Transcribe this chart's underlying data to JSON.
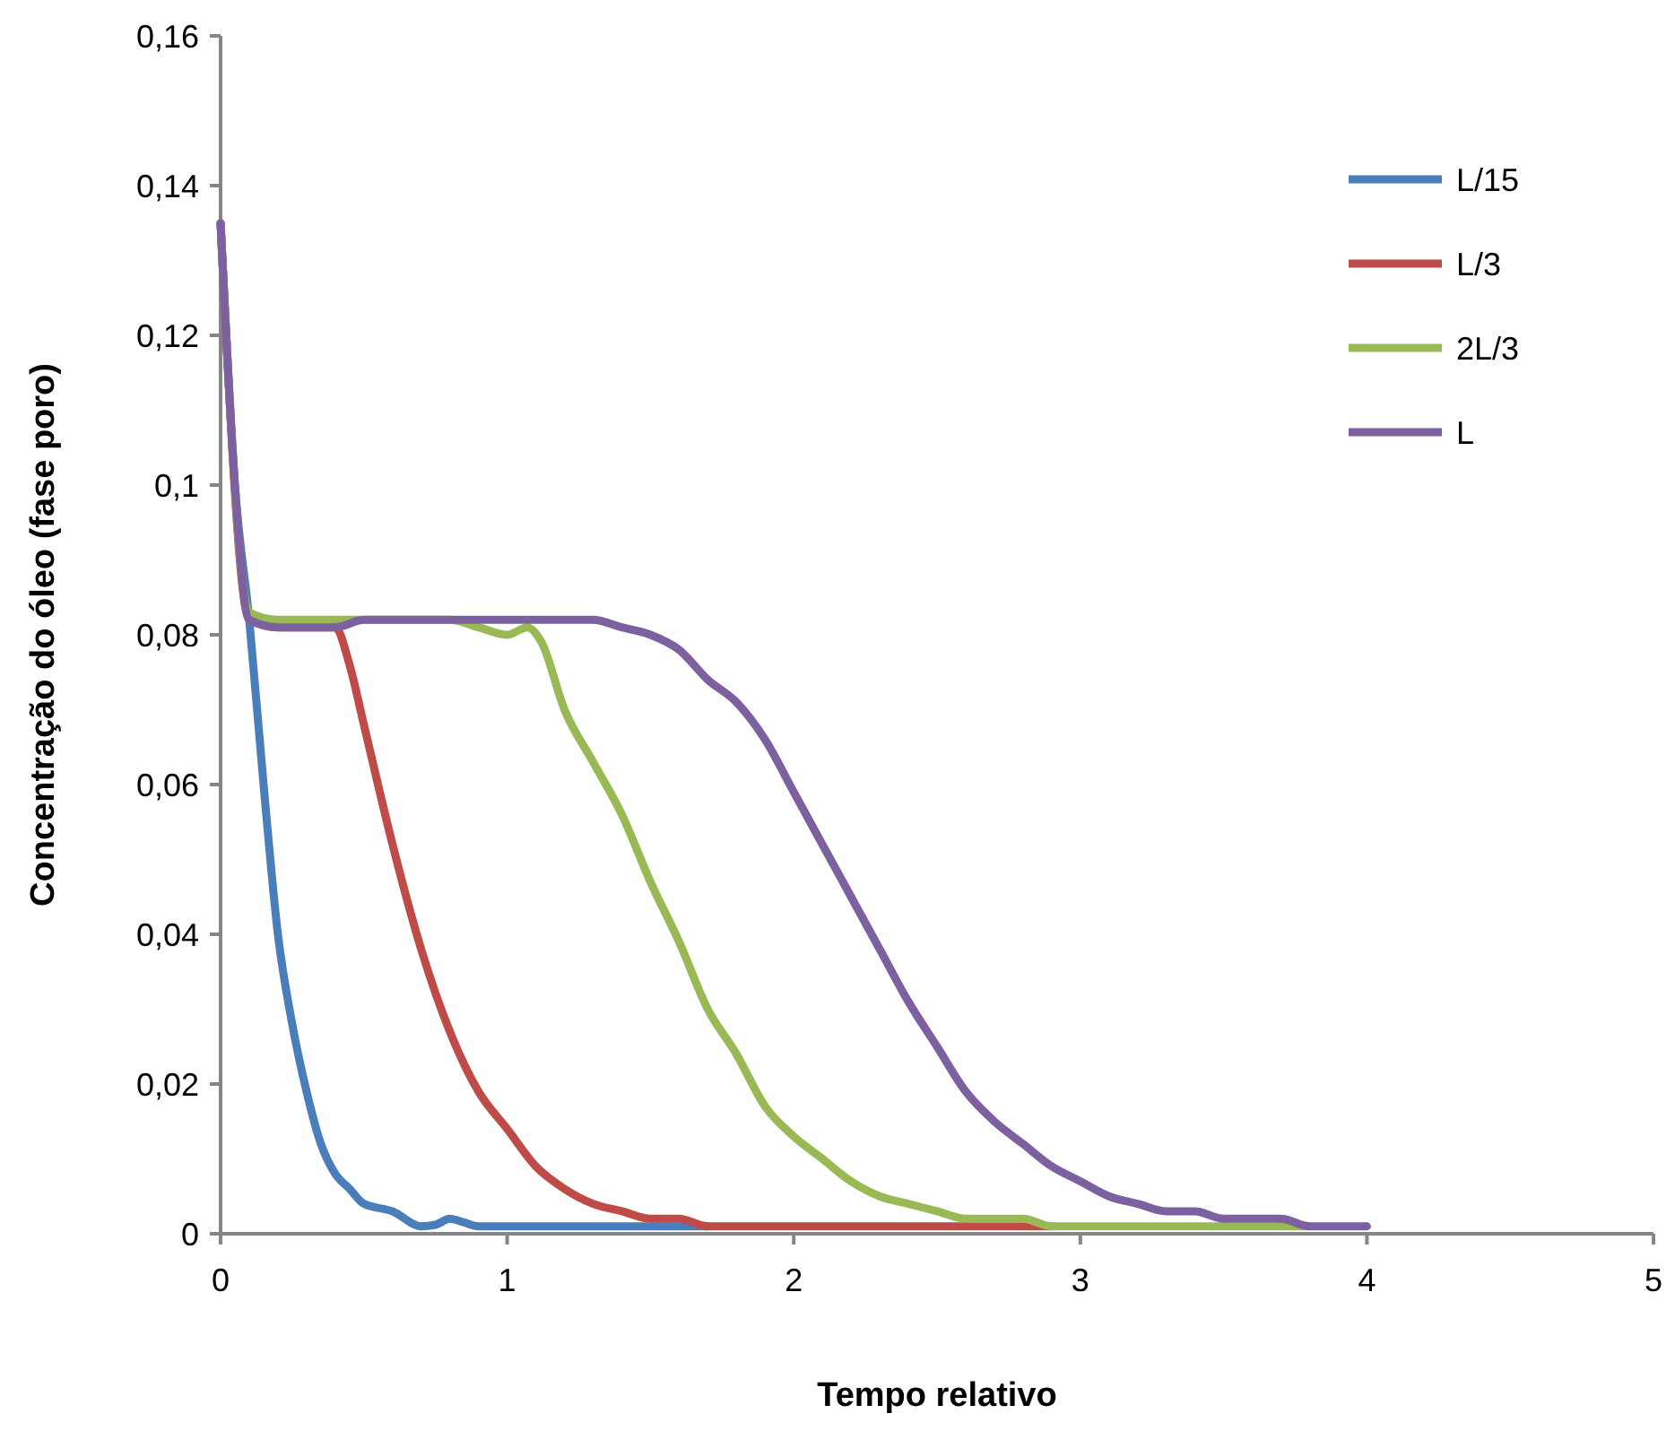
{
  "chart_data": {
    "type": "line",
    "xlabel": "Tempo relativo",
    "ylabel": "Concentração do óleo (fase poro)",
    "xlim": [
      0,
      5
    ],
    "xticks": [
      0,
      1,
      2,
      3,
      4,
      5
    ],
    "ylim": [
      0,
      0.16
    ],
    "yticks": [
      {
        "value": 0,
        "label": "0"
      },
      {
        "value": 0.02,
        "label": "0,02"
      },
      {
        "value": 0.04,
        "label": "0,04"
      },
      {
        "value": 0.06,
        "label": "0,06"
      },
      {
        "value": 0.08,
        "label": "0,08"
      },
      {
        "value": 0.1,
        "label": "0,1"
      },
      {
        "value": 0.12,
        "label": "0,12"
      },
      {
        "value": 0.14,
        "label": "0,14"
      },
      {
        "value": 0.16,
        "label": "0,16"
      }
    ],
    "grid": false,
    "legend": "top right",
    "marker": "none",
    "line_style": "solid",
    "series": [
      {
        "name": "L/15",
        "color": "#4a7ebb",
        "x": [
          0,
          0.05,
          0.1,
          0.15,
          0.2,
          0.25,
          0.3,
          0.35,
          0.4,
          0.45,
          0.5,
          0.6,
          0.7,
          0.75,
          0.8,
          0.85,
          0.9,
          1,
          1.3,
          1.7
        ],
        "values": [
          0.135,
          0.1,
          0.082,
          0.06,
          0.04,
          0.028,
          0.019,
          0.012,
          0.008,
          0.006,
          0.004,
          0.003,
          0.001,
          0.0012,
          0.002,
          0.0015,
          0.001,
          0.001,
          0.001,
          0.001
        ]
      },
      {
        "name": "L/3",
        "color": "#be4b48",
        "x": [
          0,
          0.1,
          0.2,
          0.3,
          0.4,
          0.45,
          0.5,
          0.6,
          0.7,
          0.8,
          0.9,
          1,
          1.1,
          1.2,
          1.3,
          1.4,
          1.5,
          1.6,
          1.7,
          2,
          2.5,
          2.9
        ],
        "values": [
          0.135,
          0.082,
          0.081,
          0.081,
          0.081,
          0.076,
          0.068,
          0.052,
          0.038,
          0.027,
          0.019,
          0.014,
          0.009,
          0.006,
          0.004,
          0.003,
          0.002,
          0.002,
          0.001,
          0.001,
          0.001,
          0.001
        ]
      },
      {
        "name": "2L/3",
        "color": "#98b954",
        "x": [
          0,
          0.1,
          0.2,
          0.5,
          0.8,
          0.9,
          1,
          1.07,
          1.12,
          1.2,
          1.3,
          1.4,
          1.5,
          1.6,
          1.7,
          1.8,
          1.9,
          2,
          2.1,
          2.2,
          2.3,
          2.4,
          2.5,
          2.6,
          2.8,
          2.9,
          3.5,
          3.8
        ],
        "values": [
          0.135,
          0.083,
          0.082,
          0.082,
          0.082,
          0.081,
          0.08,
          0.081,
          0.079,
          0.07,
          0.063,
          0.056,
          0.047,
          0.039,
          0.03,
          0.024,
          0.017,
          0.013,
          0.01,
          0.007,
          0.005,
          0.004,
          0.003,
          0.002,
          0.002,
          0.001,
          0.001,
          0.001
        ]
      },
      {
        "name": "L",
        "color": "#7d60a0",
        "x": [
          0,
          0.05,
          0.1,
          0.2,
          0.4,
          0.5,
          1.3,
          1.4,
          1.5,
          1.6,
          1.7,
          1.8,
          1.9,
          2,
          2.1,
          2.2,
          2.3,
          2.4,
          2.5,
          2.6,
          2.7,
          2.8,
          2.9,
          3,
          3.1,
          3.2,
          3.3,
          3.4,
          3.5,
          3.6,
          3.7,
          3.8,
          4
        ],
        "values": [
          0.135,
          0.1,
          0.082,
          0.081,
          0.081,
          0.082,
          0.082,
          0.081,
          0.08,
          0.078,
          0.074,
          0.071,
          0.066,
          0.059,
          0.052,
          0.045,
          0.038,
          0.031,
          0.025,
          0.019,
          0.015,
          0.012,
          0.009,
          0.007,
          0.005,
          0.004,
          0.003,
          0.003,
          0.002,
          0.002,
          0.002,
          0.001,
          0.001
        ]
      }
    ]
  }
}
